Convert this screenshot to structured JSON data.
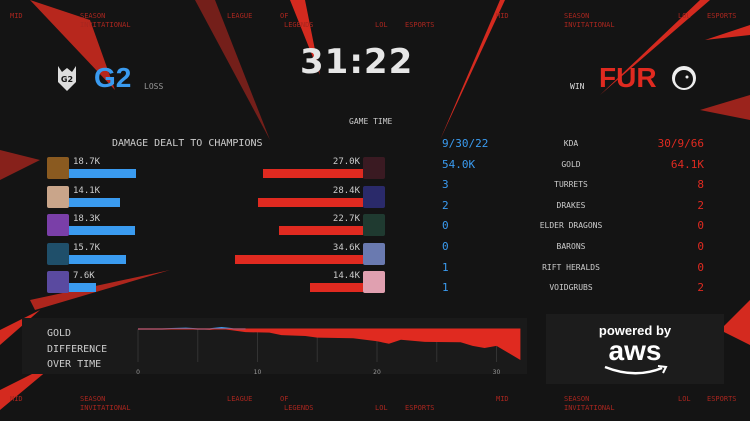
{
  "ticker": {
    "items": [
      "MID",
      "SEASON",
      "INVITATIONAL",
      "LEAGUE",
      "OF",
      "LEGENDS",
      "LOL",
      "ESPORTS"
    ]
  },
  "header": {
    "clock": "31:22",
    "left_team": {
      "name": "G2",
      "result": "LOSS",
      "color": "#3a9bf0",
      "logo": "g2-logo-icon"
    },
    "right_team": {
      "name": "FUR",
      "result": "WIN",
      "color": "#e02a20",
      "logo": "furia-panther-icon"
    }
  },
  "game_time_label": "GAME TIME",
  "damage": {
    "title": "DAMAGE DEALT TO CHAMPIONS",
    "left": [
      {
        "value": "18.7K",
        "k": 18.7
      },
      {
        "value": "14.1K",
        "k": 14.1
      },
      {
        "value": "18.3K",
        "k": 18.3
      },
      {
        "value": "15.7K",
        "k": 15.7
      },
      {
        "value": "7.6K",
        "k": 7.6
      }
    ],
    "right": [
      {
        "value": "27.0K",
        "k": 27.0
      },
      {
        "value": "28.4K",
        "k": 28.4
      },
      {
        "value": "22.7K",
        "k": 22.7
      },
      {
        "value": "34.6K",
        "k": 34.6
      },
      {
        "value": "14.4K",
        "k": 14.4
      }
    ]
  },
  "stats": [
    {
      "label": "KDA",
      "left": "9/30/22",
      "right": "30/9/66"
    },
    {
      "label": "GOLD",
      "left": "54.0K",
      "right": "64.1K"
    },
    {
      "label": "TURRETS",
      "left": "3",
      "right": "8"
    },
    {
      "label": "DRAKES",
      "left": "2",
      "right": "2"
    },
    {
      "label": "ELDER DRAGONS",
      "left": "0",
      "right": "0"
    },
    {
      "label": "BARONS",
      "left": "0",
      "right": "0"
    },
    {
      "label": "RIFT HERALDS",
      "left": "1",
      "right": "0"
    },
    {
      "label": "VOIDGRUBS",
      "left": "1",
      "right": "2"
    }
  ],
  "gold_chart": {
    "label": [
      "GOLD",
      "DIFFERENCE",
      "OVER TIME"
    ],
    "chart_data": {
      "type": "area",
      "x_ticks": [
        "0",
        "10",
        "20",
        "30"
      ],
      "xlim": [
        0,
        32
      ],
      "x": [
        0,
        2,
        4,
        5,
        6,
        7,
        8,
        9,
        11,
        12,
        14,
        15,
        18,
        20,
        21,
        22,
        24,
        27,
        28,
        29,
        30,
        32
      ],
      "y": [
        0,
        0,
        0.2,
        0,
        -0.3,
        0.4,
        -0.5,
        -1,
        -1.2,
        -2,
        -2.3,
        -2.8,
        -3,
        -4,
        -4.8,
        -3.5,
        -4.2,
        -4.3,
        -5.5,
        -6.2,
        -5.5,
        -10.1
      ],
      "positive_color": "#3a9bf0",
      "negative_color": "#e02a20"
    }
  },
  "sponsor": {
    "line1": "powered by",
    "line2": "aws"
  }
}
